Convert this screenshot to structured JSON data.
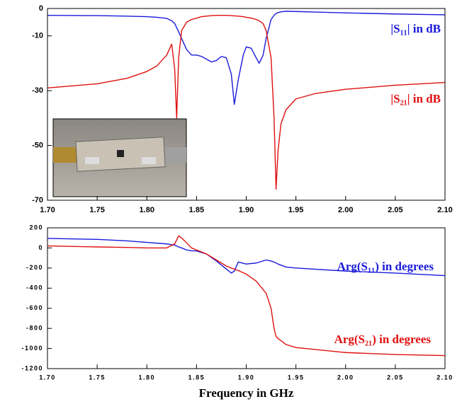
{
  "chart_data": [
    {
      "type": "line",
      "x": [
        1.7,
        1.75,
        1.78,
        1.8,
        1.81,
        1.82,
        1.825,
        1.828,
        1.83,
        1.832,
        1.835,
        1.84,
        1.845,
        1.85,
        1.855,
        1.86,
        1.865,
        1.87,
        1.875,
        1.88,
        1.885,
        1.888,
        1.892,
        1.897,
        1.9,
        1.905,
        1.91,
        1.913,
        1.917,
        1.92,
        1.925,
        1.928,
        1.93,
        1.932,
        1.935,
        1.94,
        1.95,
        1.97,
        2.0,
        2.05,
        2.1
      ],
      "series": [
        {
          "name": "|S₁₁| in dB",
          "color": "#1a1adc",
          "values": [
            -2.5,
            -2.6,
            -2.8,
            -3,
            -3.2,
            -3.6,
            -4.5,
            -5.5,
            -7,
            -8.5,
            -11,
            -15,
            -17,
            -17,
            -17.5,
            -18.5,
            -19.5,
            -19,
            -17.5,
            -18,
            -24,
            -35,
            -26,
            -17,
            -14,
            -14.5,
            -18,
            -20,
            -17,
            -11,
            -4,
            -2.5,
            -1.8,
            -1.5,
            -1.2,
            -1,
            -1.1,
            -1.3,
            -1.6,
            -2,
            -2.3
          ]
        },
        {
          "name": "|S₂₁| in dB",
          "color": "#e01010",
          "values": [
            -29,
            -27.5,
            -25.5,
            -23,
            -21,
            -17,
            -13,
            -22,
            -40,
            -18,
            -8,
            -5,
            -4,
            -3.5,
            -3,
            -2.8,
            -2.6,
            -2.5,
            -2.5,
            -2.5,
            -2.6,
            -2.7,
            -2.8,
            -3,
            -3.2,
            -3.5,
            -4,
            -4.5,
            -5.5,
            -8,
            -18,
            -40,
            -66,
            -52,
            -42,
            -37,
            -33,
            -31,
            -29.5,
            -28,
            -27
          ]
        }
      ],
      "xlim": [
        1.7,
        2.1
      ],
      "xticks": [
        {
          "value": 1.7,
          "label": "1.70"
        },
        1.75,
        {
          "value": 1.8,
          "label": "1.80"
        },
        1.85,
        {
          "value": 1.9,
          "label": "1.90"
        },
        1.95,
        {
          "value": 2,
          "label": "2.00"
        },
        2.05,
        {
          "value": 2.1,
          "label": "2.10"
        }
      ],
      "ylim": [
        -70,
        0
      ],
      "yticks": [
        0,
        -10,
        -30,
        -50,
        -70
      ]
    },
    {
      "type": "line",
      "x": [
        1.7,
        1.75,
        1.78,
        1.8,
        1.82,
        1.828,
        1.83,
        1.832,
        1.835,
        1.84,
        1.845,
        1.85,
        1.86,
        1.87,
        1.88,
        1.885,
        1.888,
        1.892,
        1.9,
        1.91,
        1.92,
        1.925,
        1.928,
        1.93,
        1.932,
        1.94,
        1.95,
        2.0,
        2.05,
        2.1
      ],
      "series": [
        {
          "name": "Arg(S₁₁) in degrees",
          "color": "#1a1adc",
          "values": [
            95,
            85,
            70,
            55,
            40,
            28,
            20,
            10,
            0,
            -20,
            -28,
            -30,
            -60,
            -130,
            -210,
            -250,
            -230,
            -140,
            -160,
            -150,
            -120,
            -130,
            -140,
            -150,
            -160,
            -190,
            -200,
            -230,
            -250,
            -275
          ]
        },
        {
          "name": "Arg(S₂₁) in degrees",
          "color": "#e01010",
          "values": [
            20,
            10,
            5,
            0,
            0,
            40,
            80,
            120,
            100,
            50,
            0,
            -20,
            -60,
            -120,
            -180,
            -200,
            -210,
            -225,
            -260,
            -330,
            -450,
            -600,
            -800,
            -880,
            -900,
            -960,
            -990,
            -1040,
            -1060,
            -1070
          ]
        }
      ],
      "xlim": [
        1.7,
        2.1
      ],
      "xticks": [
        {
          "value": 1.7,
          "label": "1.70"
        },
        1.75,
        {
          "value": 1.8,
          "label": "1.80"
        },
        1.85,
        {
          "value": 1.9,
          "label": "1.90"
        },
        1.95,
        {
          "value": 2,
          "label": "2.00"
        },
        2.05,
        {
          "value": 2.1,
          "label": "2.10"
        }
      ],
      "ylim": [
        -1200,
        200
      ],
      "yticks": [
        200,
        0,
        -200,
        -400,
        -600,
        -800,
        -1000,
        -1200
      ],
      "xlabel": "Frequency in GHz"
    }
  ]
}
